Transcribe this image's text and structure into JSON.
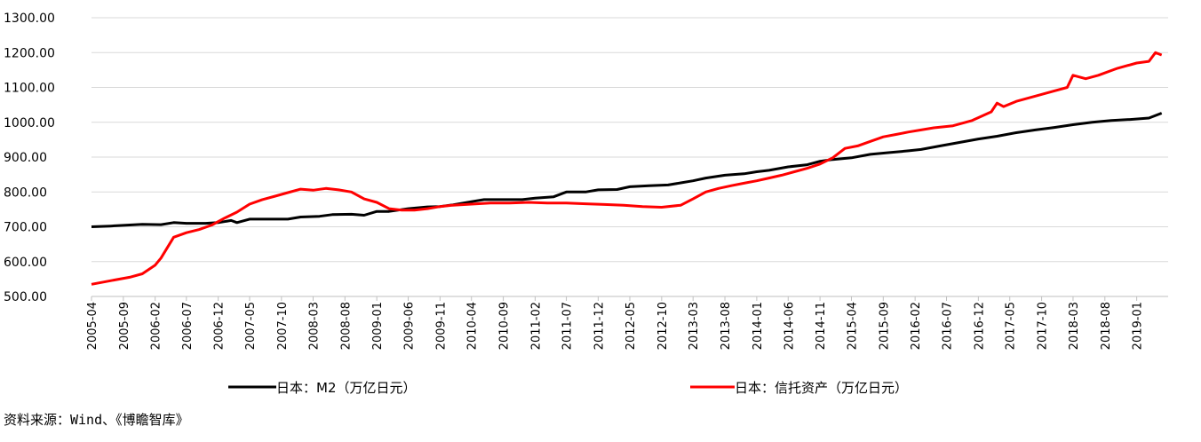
{
  "source_note": "资料来源：Wind、《博瞻智库》",
  "chart_data": {
    "type": "line",
    "title": "",
    "xlabel": "",
    "ylabel": "",
    "ylim": [
      500,
      1300
    ],
    "yticks": [
      "500.00",
      "600.00",
      "700.00",
      "800.00",
      "900.00",
      "1000.00",
      "1100.00",
      "1200.00",
      "1300.00"
    ],
    "grid": true,
    "legend_position": "bottom",
    "x_ticks": [
      "2005-04",
      "2005-09",
      "2006-02",
      "2006-07",
      "2006-12",
      "2007-05",
      "2007-10",
      "2008-03",
      "2008-08",
      "2009-01",
      "2009-06",
      "2009-11",
      "2010-04",
      "2010-09",
      "2011-02",
      "2011-07",
      "2011-12",
      "2012-05",
      "2012-10",
      "2013-03",
      "2013-08",
      "2014-01",
      "2014-06",
      "2014-11",
      "2015-04",
      "2015-09",
      "2016-02",
      "2016-07",
      "2016-12",
      "2017-05",
      "2017-10",
      "2018-03",
      "2018-08",
      "2019-01"
    ],
    "series": [
      {
        "name": "日本：M2（万亿日元）",
        "color": "#000000",
        "points": [
          [
            "2005-04",
            700
          ],
          [
            "2005-07",
            702
          ],
          [
            "2005-09",
            704
          ],
          [
            "2005-12",
            707
          ],
          [
            "2006-03",
            706
          ],
          [
            "2006-05",
            712
          ],
          [
            "2006-07",
            710
          ],
          [
            "2006-10",
            710
          ],
          [
            "2006-12",
            712
          ],
          [
            "2007-02",
            718
          ],
          [
            "2007-03",
            712
          ],
          [
            "2007-05",
            722
          ],
          [
            "2007-08",
            722
          ],
          [
            "2007-11",
            722
          ],
          [
            "2008-01",
            728
          ],
          [
            "2008-04",
            730
          ],
          [
            "2008-06",
            735
          ],
          [
            "2008-09",
            736
          ],
          [
            "2008-11",
            733
          ],
          [
            "2009-01",
            744
          ],
          [
            "2009-03",
            744
          ],
          [
            "2009-06",
            752
          ],
          [
            "2009-09",
            757
          ],
          [
            "2009-11",
            758
          ],
          [
            "2010-01",
            763
          ],
          [
            "2010-04",
            772
          ],
          [
            "2010-06",
            778
          ],
          [
            "2010-09",
            778
          ],
          [
            "2010-12",
            778
          ],
          [
            "2011-02",
            782
          ],
          [
            "2011-05",
            786
          ],
          [
            "2011-07",
            800
          ],
          [
            "2011-10",
            800
          ],
          [
            "2011-12",
            806
          ],
          [
            "2012-03",
            807
          ],
          [
            "2012-05",
            815
          ],
          [
            "2012-08",
            818
          ],
          [
            "2012-11",
            820
          ],
          [
            "2013-01",
            826
          ],
          [
            "2013-03",
            832
          ],
          [
            "2013-05",
            840
          ],
          [
            "2013-08",
            848
          ],
          [
            "2013-11",
            852
          ],
          [
            "2014-01",
            858
          ],
          [
            "2014-03",
            862
          ],
          [
            "2014-06",
            872
          ],
          [
            "2014-09",
            878
          ],
          [
            "2014-11",
            888
          ],
          [
            "2015-01",
            893
          ],
          [
            "2015-04",
            898
          ],
          [
            "2015-07",
            908
          ],
          [
            "2015-10",
            913
          ],
          [
            "2016-01",
            918
          ],
          [
            "2016-03",
            922
          ],
          [
            "2016-06",
            932
          ],
          [
            "2016-09",
            942
          ],
          [
            "2016-12",
            952
          ],
          [
            "2017-03",
            960
          ],
          [
            "2017-06",
            970
          ],
          [
            "2017-09",
            978
          ],
          [
            "2017-12",
            985
          ],
          [
            "2018-03",
            993
          ],
          [
            "2018-06",
            1000
          ],
          [
            "2018-09",
            1005
          ],
          [
            "2018-12",
            1008
          ],
          [
            "2019-03",
            1012
          ],
          [
            "2019-05",
            1026
          ]
        ]
      },
      {
        "name": "日本：信托资产（万亿日元）",
        "color": "#ff0000",
        "points": [
          [
            "2005-04",
            535
          ],
          [
            "2005-07",
            545
          ],
          [
            "2005-10",
            555
          ],
          [
            "2005-12",
            565
          ],
          [
            "2006-02",
            590
          ],
          [
            "2006-03",
            610
          ],
          [
            "2006-05",
            670
          ],
          [
            "2006-07",
            683
          ],
          [
            "2006-09",
            692
          ],
          [
            "2006-11",
            705
          ],
          [
            "2007-01",
            725
          ],
          [
            "2007-03",
            742
          ],
          [
            "2007-05",
            765
          ],
          [
            "2007-07",
            778
          ],
          [
            "2007-09",
            788
          ],
          [
            "2007-11",
            798
          ],
          [
            "2008-01",
            808
          ],
          [
            "2008-03",
            805
          ],
          [
            "2008-05",
            810
          ],
          [
            "2008-07",
            806
          ],
          [
            "2008-09",
            800
          ],
          [
            "2008-11",
            780
          ],
          [
            "2009-01",
            770
          ],
          [
            "2009-03",
            752
          ],
          [
            "2009-05",
            748
          ],
          [
            "2009-07",
            748
          ],
          [
            "2009-09",
            752
          ],
          [
            "2009-11",
            758
          ],
          [
            "2010-01",
            762
          ],
          [
            "2010-04",
            765
          ],
          [
            "2010-07",
            768
          ],
          [
            "2010-10",
            768
          ],
          [
            "2011-01",
            770
          ],
          [
            "2011-04",
            768
          ],
          [
            "2011-07",
            768
          ],
          [
            "2011-10",
            766
          ],
          [
            "2012-01",
            764
          ],
          [
            "2012-04",
            762
          ],
          [
            "2012-07",
            758
          ],
          [
            "2012-10",
            756
          ],
          [
            "2013-01",
            762
          ],
          [
            "2013-03",
            780
          ],
          [
            "2013-05",
            800
          ],
          [
            "2013-07",
            810
          ],
          [
            "2013-09",
            818
          ],
          [
            "2013-11",
            825
          ],
          [
            "2014-01",
            832
          ],
          [
            "2014-03",
            840
          ],
          [
            "2014-05",
            848
          ],
          [
            "2014-07",
            858
          ],
          [
            "2014-09",
            868
          ],
          [
            "2014-11",
            880
          ],
          [
            "2015-01",
            898
          ],
          [
            "2015-03",
            925
          ],
          [
            "2015-05",
            932
          ],
          [
            "2015-07",
            945
          ],
          [
            "2015-09",
            958
          ],
          [
            "2015-11",
            965
          ],
          [
            "2016-01",
            972
          ],
          [
            "2016-03",
            978
          ],
          [
            "2016-05",
            984
          ],
          [
            "2016-08",
            990
          ],
          [
            "2016-11",
            1005
          ],
          [
            "2017-02",
            1030
          ],
          [
            "2017-03",
            1055
          ],
          [
            "2017-04",
            1045
          ],
          [
            "2017-06",
            1060
          ],
          [
            "2017-09",
            1075
          ],
          [
            "2017-12",
            1090
          ],
          [
            "2018-02",
            1100
          ],
          [
            "2018-03",
            1135
          ],
          [
            "2018-05",
            1125
          ],
          [
            "2018-07",
            1135
          ],
          [
            "2018-10",
            1155
          ],
          [
            "2019-01",
            1170
          ],
          [
            "2019-03",
            1175
          ],
          [
            "2019-04",
            1200
          ],
          [
            "2019-05",
            1193
          ]
        ]
      }
    ]
  }
}
